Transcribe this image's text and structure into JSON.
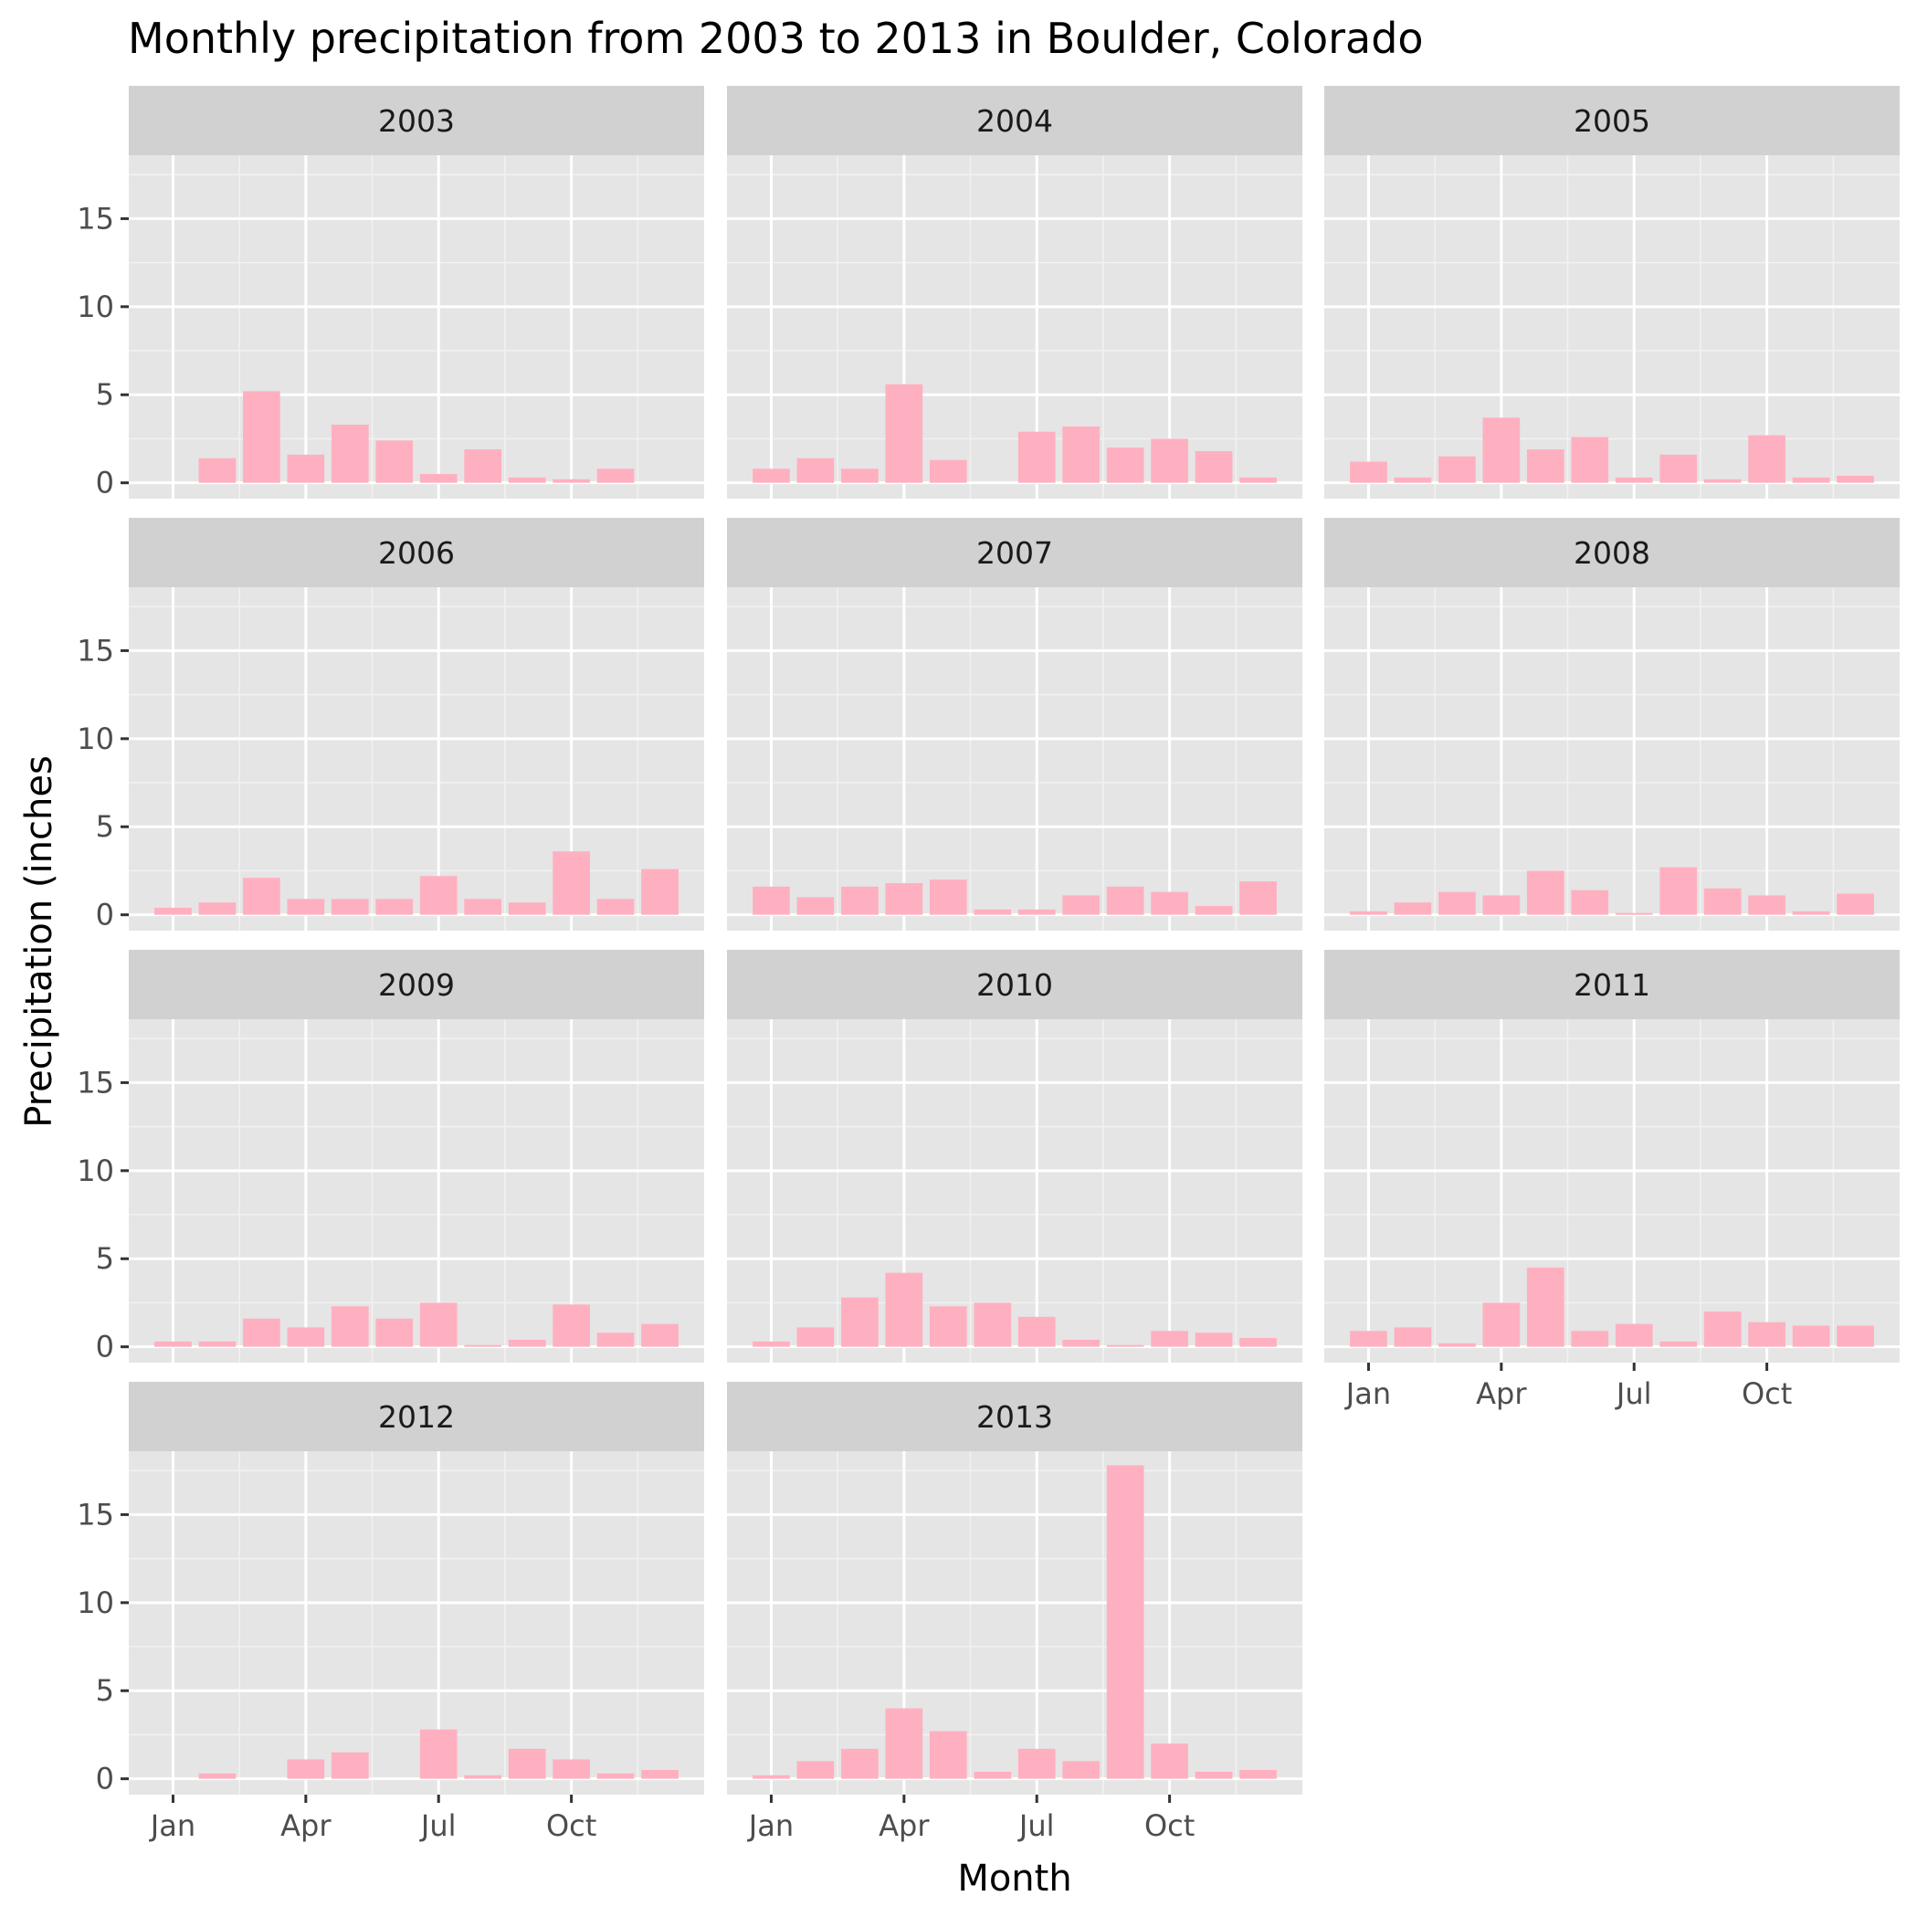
{
  "chart_data": {
    "type": "bar",
    "title": "Monthly precipitation from 2003 to 2013 in Boulder, Colorado",
    "xlabel": "Month",
    "ylabel": "Precipitation (inches",
    "x_tick_labels": [
      "Jan",
      "Apr",
      "Jul",
      "Oct"
    ],
    "y_ticks": [
      0,
      5,
      10,
      15
    ],
    "ylim": [
      -0.9,
      18.6
    ],
    "grid": true,
    "bar_color": "#ffb0c0",
    "panel_background": "#e5e5e5",
    "strip_background": "#d1d1d1",
    "categories": [
      "Jan",
      "Feb",
      "Mar",
      "Apr",
      "May",
      "Jun",
      "Jul",
      "Aug",
      "Sep",
      "Oct",
      "Nov",
      "Dec"
    ],
    "facets": [
      {
        "label": "2003",
        "values": [
          0,
          1.4,
          5.2,
          1.6,
          3.3,
          2.4,
          0.5,
          1.9,
          0.3,
          0.2,
          0.8,
          0
        ]
      },
      {
        "label": "2004",
        "values": [
          0.8,
          1.4,
          0.8,
          5.6,
          1.3,
          0,
          2.9,
          3.2,
          2.0,
          2.5,
          1.8,
          0.3
        ]
      },
      {
        "label": "2005",
        "values": [
          1.2,
          0.3,
          1.5,
          3.7,
          1.9,
          2.6,
          0.3,
          1.6,
          0.2,
          2.7,
          0.3,
          0.4
        ]
      },
      {
        "label": "2006",
        "values": [
          0.4,
          0.7,
          2.1,
          0.9,
          0.9,
          0.9,
          2.2,
          0.9,
          0.7,
          3.6,
          0.9,
          2.6
        ]
      },
      {
        "label": "2007",
        "values": [
          1.6,
          1.0,
          1.6,
          1.8,
          2.0,
          0.3,
          0.3,
          1.1,
          1.6,
          1.3,
          0.5,
          1.9
        ]
      },
      {
        "label": "2008",
        "values": [
          0.2,
          0.7,
          1.3,
          1.1,
          2.5,
          1.4,
          0.1,
          2.7,
          1.5,
          1.1,
          0.2,
          1.2
        ]
      },
      {
        "label": "2009",
        "values": [
          0.3,
          0.3,
          1.6,
          1.1,
          2.3,
          1.6,
          2.5,
          0.1,
          0.4,
          2.4,
          0.8,
          1.3
        ]
      },
      {
        "label": "2010",
        "values": [
          0.3,
          1.1,
          2.8,
          4.2,
          2.3,
          2.5,
          1.7,
          0.4,
          0.1,
          0.9,
          0.8,
          0.5
        ]
      },
      {
        "label": "2011",
        "values": [
          0.9,
          1.1,
          0.2,
          2.5,
          4.5,
          0.9,
          1.3,
          0.3,
          2.0,
          1.4,
          1.2,
          1.2
        ]
      },
      {
        "label": "2012",
        "values": [
          0,
          0.3,
          0,
          1.1,
          1.5,
          0,
          2.8,
          0.2,
          1.7,
          1.1,
          0.3,
          0.5
        ]
      },
      {
        "label": "2013",
        "values": [
          0.2,
          1.0,
          1.7,
          4.0,
          2.7,
          0.4,
          1.7,
          1.0,
          17.8,
          2.0,
          0.4,
          0.5
        ]
      }
    ]
  }
}
